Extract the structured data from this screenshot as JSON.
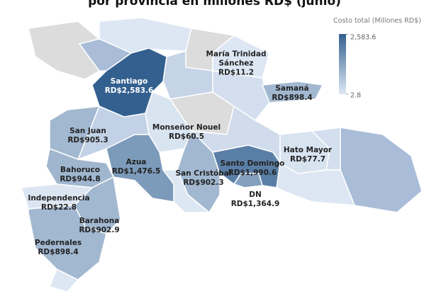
{
  "chart_data": {
    "type": "choropleth",
    "title": "por provincia en millones RD$ (junio)",
    "legend_title": "Costo total (Millones RD$)",
    "categories": [
      "Santiago",
      "María Trinidad Sánchez",
      "Samaná",
      "Monseñor Nouel",
      "San Juan",
      "Azua",
      "Hato Mayor",
      "Bahoruco",
      "San Cristóbal",
      "Santo Domingo",
      "DN",
      "Independencia",
      "Barahona",
      "Pedernales"
    ],
    "values": [
      2583.6,
      11.2,
      898.4,
      60.5,
      905.3,
      1476.5,
      77.7,
      944.8,
      902.3,
      1990.6,
      1364.9,
      22.8,
      902.9,
      898.4
    ],
    "value_labels": [
      "RD$2,583.6",
      "RD$11.2",
      "RD$898.4",
      "RD$60.5",
      "RD$905.3",
      "RD$1,476.5",
      "RD$77.7",
      "RD$944.8",
      "RD$902.3",
      "RD$1,990.6",
      "RD$1,364.9",
      "RD$22.8",
      "RD$902.9",
      "RD$898.4"
    ],
    "colorscale": [
      "#dde7f3",
      "#33608f"
    ],
    "clim": [
      2.8,
      2583.6
    ],
    "cticks": [
      {
        "value": 2583.6,
        "label": "2,583.6"
      },
      2.8
    ]
  }
}
